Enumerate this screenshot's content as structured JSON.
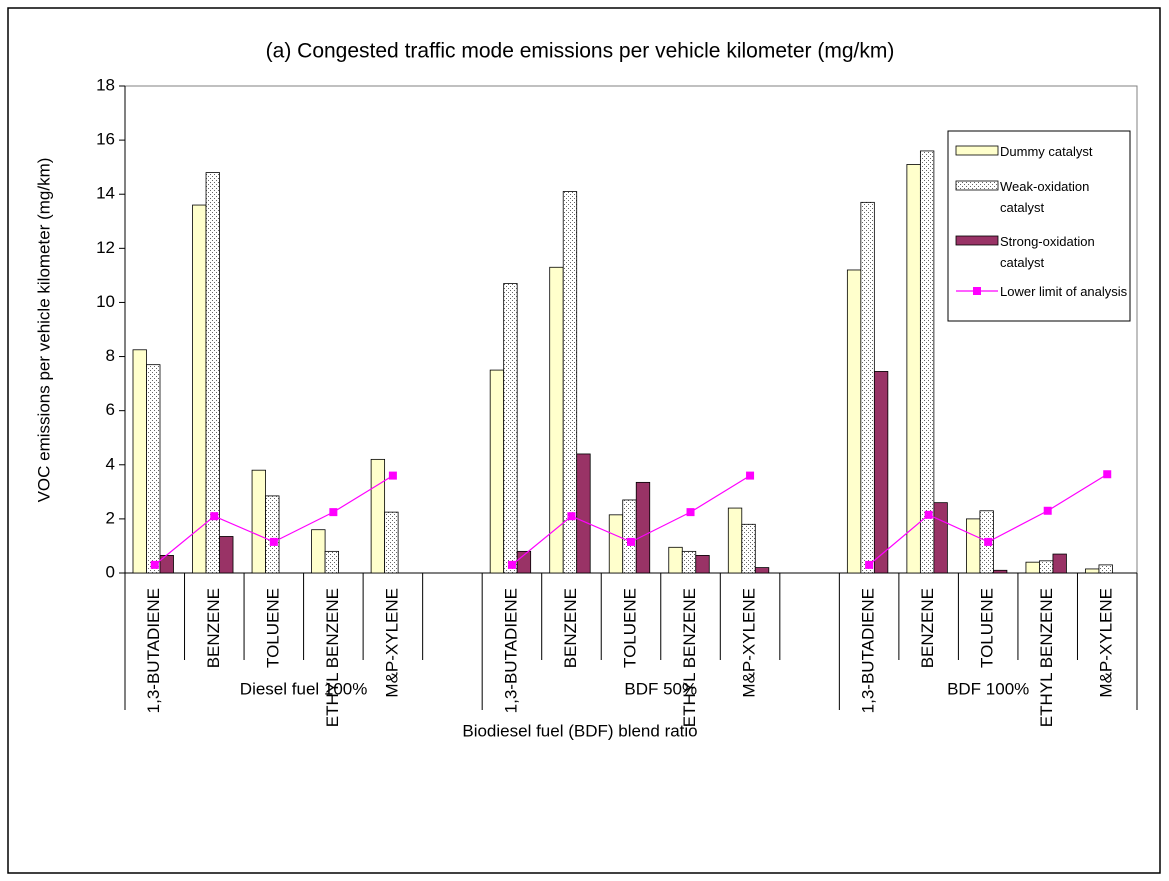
{
  "chart_data": {
    "type": "bar",
    "title": "(a) Congested traffic mode emissions per vehicle kilometer (mg/km)",
    "x_label": "Biodiesel fuel (BDF) blend ratio",
    "y_label": "VOC emissions per vehicle kilometer   (mg/km)",
    "groups": [
      {
        "name": "Diesel fuel 100%",
        "categories": [
          "1,3-BUTADIENE",
          "BENZENE",
          "TOLUENE",
          "ETHYL BENZENE",
          "M&P-XYLENE",
          null
        ]
      },
      {
        "name": "BDF 50%",
        "categories": [
          "1,3-BUTADIENE",
          "BENZENE",
          "TOLUENE",
          "ETHYL BENZENE",
          "M&P-XYLENE",
          null
        ]
      },
      {
        "name": "BDF 100%",
        "categories": [
          "1,3-BUTADIENE",
          "BENZENE",
          "TOLUENE",
          "ETHYL BENZENE",
          "M&P-XYLENE"
        ]
      }
    ],
    "series": [
      {
        "name": "Dummy catalyst",
        "type": "bar",
        "color": "#ffffcc",
        "values": [
          8.25,
          13.6,
          3.8,
          1.6,
          4.2,
          null,
          7.5,
          11.3,
          2.15,
          0.95,
          2.4,
          null,
          11.2,
          15.1,
          2.0,
          0.4,
          0.15
        ]
      },
      {
        "name": "Weak-oxidation catalyst",
        "type": "bar",
        "color": "#dotted",
        "values": [
          7.7,
          14.8,
          2.85,
          0.8,
          2.25,
          null,
          10.7,
          14.1,
          2.7,
          0.8,
          1.8,
          null,
          13.7,
          15.6,
          2.3,
          0.45,
          0.3
        ]
      },
      {
        "name": "Strong-oxidation catalyst",
        "type": "bar",
        "color": "#993366",
        "values": [
          0.65,
          1.35,
          null,
          null,
          null,
          null,
          0.8,
          4.4,
          3.35,
          0.65,
          0.2,
          null,
          7.45,
          2.6,
          0.1,
          0.7,
          null
        ]
      },
      {
        "name": "Lower limit of analysis",
        "type": "line",
        "color": "#ff00ff",
        "values": [
          0.3,
          2.1,
          1.15,
          2.25,
          3.6,
          null,
          0.3,
          2.1,
          1.15,
          2.25,
          3.6,
          null,
          0.3,
          2.15,
          1.15,
          2.3,
          3.65
        ]
      }
    ],
    "ylim": [
      0,
      18
    ],
    "yticks": [
      0,
      2,
      4,
      6,
      8,
      10,
      12,
      14,
      16,
      18
    ],
    "grid": false,
    "legend": "upper right"
  }
}
